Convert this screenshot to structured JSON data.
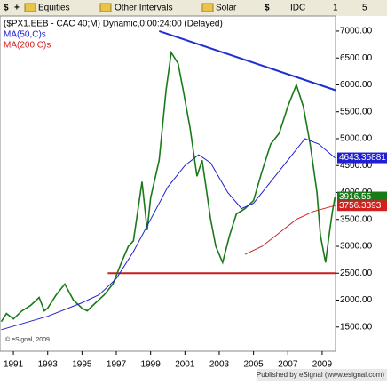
{
  "toolbar": {
    "items": [
      "Equities",
      "Other Intervals",
      "Solar",
      "IDC",
      "1",
      "5"
    ]
  },
  "footer": "Published by eSignal (www.esignal.com)",
  "chart_data": {
    "type": "line",
    "title": "($PX1.EEB - CAC 40;M) Dynamic,0:00:24:00 (Delayed)",
    "copyright": "© eSignal, 2009",
    "xlim": [
      1990.22,
      2009.78
    ],
    "xticks": [
      1991,
      1993,
      1995,
      1997,
      1999,
      2001,
      2003,
      2005,
      2007,
      2009
    ],
    "ylim": [
      1050,
      7280
    ],
    "yticks": [
      {
        "value": 1500,
        "label": "1500.00"
      },
      {
        "value": 2000,
        "label": "2000.00"
      },
      {
        "value": 2500,
        "label": "2500.00"
      },
      {
        "value": 3000,
        "label": "3000.00"
      },
      {
        "value": 3500,
        "label": "3500.00"
      },
      {
        "value": 4000,
        "label": "4000.00"
      },
      {
        "value": 4500,
        "label": "4500.00"
      },
      {
        "value": 5000,
        "label": "5000.00"
      },
      {
        "value": 5500,
        "label": "5500.00"
      },
      {
        "value": 6000,
        "label": "6000.00"
      },
      {
        "value": 6500,
        "label": "6500.00"
      },
      {
        "value": 7000,
        "label": "7000.00"
      }
    ],
    "series": [
      {
        "name": "CAC 40",
        "color": "#1a7a1a",
        "x": [
          1990.3,
          1990.6,
          1991,
          1991.5,
          1992,
          1992.5,
          1992.8,
          1993,
          1993.5,
          1994,
          1994.5,
          1995,
          1995.3,
          1995.8,
          1996.3,
          1996.8,
          1997.3,
          1997.7,
          1998,
          1998.5,
          1998.8,
          1999,
          1999.5,
          1999.9,
          2000.2,
          2000.6,
          2000.9,
          2001.3,
          2001.7,
          2002,
          2002.5,
          2002.8,
          2003.2,
          2003.6,
          2004,
          2004.5,
          2005,
          2005.5,
          2006,
          2006.5,
          2007,
          2007.5,
          2007.9,
          2008.3,
          2008.7,
          2008.9,
          2009.2,
          2009.4,
          2009.6,
          2009.75
        ],
        "values": [
          1600,
          1750,
          1650,
          1800,
          1900,
          2050,
          1800,
          1850,
          2100,
          2300,
          2000,
          1850,
          1800,
          1950,
          2100,
          2300,
          2700,
          3000,
          3100,
          4200,
          3300,
          3900,
          4600,
          5900,
          6600,
          6400,
          5900,
          5200,
          4300,
          4600,
          3500,
          3000,
          2700,
          3200,
          3600,
          3700,
          3850,
          4400,
          4900,
          5100,
          5600,
          6000,
          5600,
          4900,
          4000,
          3200,
          2700,
          3200,
          3650,
          3916.55
        ]
      },
      {
        "name": "MA(50,C)s",
        "color": "#2020d0",
        "x": [
          1990.3,
          1993,
          1995,
          1996,
          1997,
          1998,
          1999,
          2000,
          2001,
          2001.8,
          2002.5,
          2003.5,
          2004.3,
          2005,
          2006,
          2007,
          2008,
          2008.8,
          2009.75
        ],
        "values": [
          1450,
          1700,
          1950,
          2100,
          2400,
          2900,
          3500,
          4100,
          4500,
          4700,
          4550,
          4000,
          3700,
          3800,
          4200,
          4600,
          5000,
          4900,
          4643.35881
        ]
      },
      {
        "name": "MA(200,C)s",
        "color": "#d02020",
        "x": [
          2004.5,
          2005.5,
          2006.5,
          2007.5,
          2008.5,
          2009.75
        ],
        "values": [
          2850,
          3000,
          3250,
          3500,
          3650,
          3756.3393
        ]
      }
    ],
    "trendlines": [
      {
        "color": "#1f2fd0",
        "x": [
          1999.5,
          2009.78
        ],
        "values": [
          7000,
          5900
        ]
      },
      {
        "color": "#c81e1e",
        "x": [
          1996.5,
          2009.78
        ],
        "values": [
          2500,
          2500
        ]
      }
    ]
  }
}
